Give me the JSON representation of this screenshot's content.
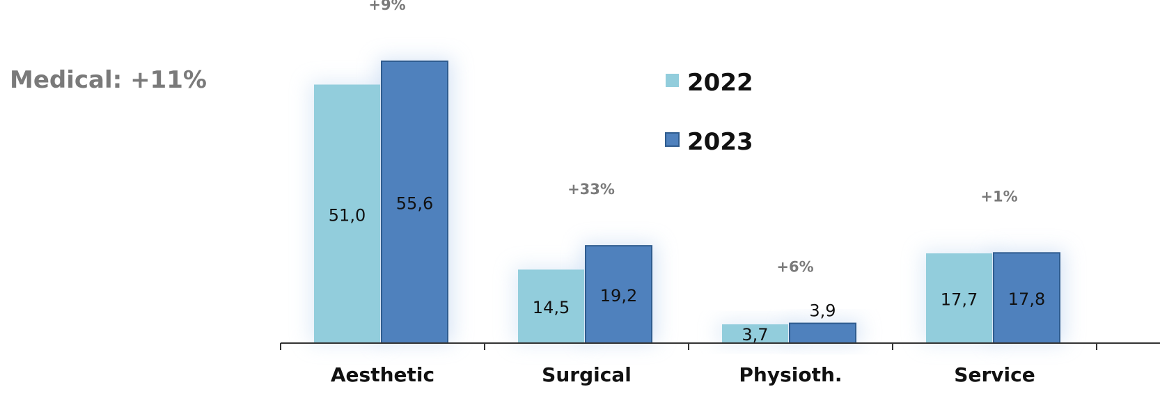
{
  "summary": "Medical: +11%",
  "colors": {
    "s2022": "#92cddc",
    "s2023": "#4f81bd",
    "s2023_stroke": "#2f5c8f",
    "axis": "#333333"
  },
  "chart_data": {
    "type": "bar",
    "categories": [
      "Aesthetic",
      "Surgical",
      "Physioth.",
      "Service"
    ],
    "series": [
      {
        "name": "2022",
        "values": [
          51.0,
          14.5,
          3.7,
          17.7
        ],
        "labels": [
          "51,0",
          "14,5",
          "3,7",
          "17,7"
        ]
      },
      {
        "name": "2023",
        "values": [
          55.6,
          19.2,
          3.9,
          17.8
        ],
        "labels": [
          "55,6",
          "19,2",
          "3,9",
          "17,8"
        ]
      }
    ],
    "changes": [
      "+9%",
      "+33%",
      "+6%",
      "+1%"
    ],
    "ylim": [
      0,
      55.6
    ],
    "legend_position": "top-center",
    "grid": false
  }
}
